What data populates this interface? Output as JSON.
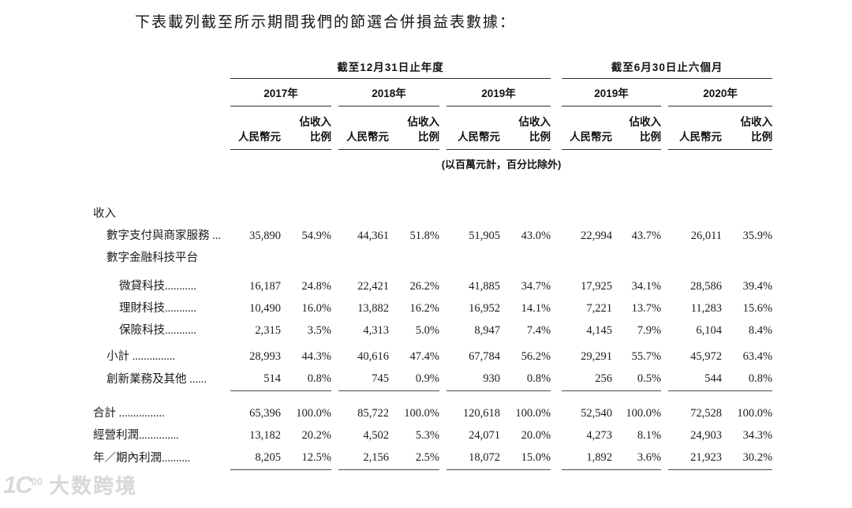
{
  "page": {
    "title": "下表載列截至所示期間我們的節選合併損益表數據："
  },
  "table": {
    "groups": [
      {
        "label": "截至12月31日止年度",
        "years": [
          "2017年",
          "2018年",
          "2019年"
        ]
      },
      {
        "label": "截至6月30日止六個月",
        "years": [
          "2019年",
          "2020年"
        ]
      }
    ],
    "subheaders": {
      "currency": "人民幣元",
      "share_line1": "佔收入",
      "share_line2": "比例"
    },
    "note": "(以百萬元計，百分比除外)",
    "rows": [
      {
        "label": "收入",
        "indent": 0,
        "values": []
      },
      {
        "label": "數字支付與商家服務 ...",
        "indent": 1,
        "values": [
          "35,890",
          "54.9%",
          "44,361",
          "51.8%",
          "51,905",
          "43.0%",
          "22,994",
          "43.7%",
          "26,011",
          "35.9%"
        ]
      },
      {
        "label": "數字金融科技平台",
        "indent": 1,
        "values": []
      },
      {
        "label": "微貸科技...........",
        "indent": 2,
        "gap": "sm",
        "values": [
          "16,187",
          "24.8%",
          "22,421",
          "26.2%",
          "41,885",
          "34.7%",
          "17,925",
          "34.1%",
          "28,586",
          "39.4%"
        ]
      },
      {
        "label": "理財科技...........",
        "indent": 2,
        "values": [
          "10,490",
          "16.0%",
          "13,882",
          "16.2%",
          "16,952",
          "14.1%",
          "7,221",
          "13.7%",
          "11,283",
          "15.6%"
        ]
      },
      {
        "label": "保險科技...........",
        "indent": 2,
        "values": [
          "2,315",
          "3.5%",
          "4,313",
          "5.0%",
          "8,947",
          "7.4%",
          "4,145",
          "7.9%",
          "6,104",
          "8.4%"
        ]
      },
      {
        "label": "小計 ...............",
        "indent": 1,
        "gap": "md",
        "values": [
          "28,993",
          "44.3%",
          "40,616",
          "47.4%",
          "67,784",
          "56.2%",
          "29,291",
          "55.7%",
          "45,972",
          "63.4%"
        ]
      },
      {
        "label": "創新業務及其他 ......",
        "indent": 1,
        "rule_below": true,
        "values": [
          "514",
          "0.8%",
          "745",
          "0.9%",
          "930",
          "0.8%",
          "256",
          "0.5%",
          "544",
          "0.8%"
        ]
      },
      {
        "label": "合計 ................",
        "indent": 0,
        "gap": "lg",
        "values": [
          "65,396",
          "100.0%",
          "85,722",
          "100.0%",
          "120,618",
          "100.0%",
          "52,540",
          "100.0%",
          "72,528",
          "100.0%"
        ]
      },
      {
        "label": "經營利潤..............",
        "indent": 0,
        "values": [
          "13,182",
          "20.2%",
          "4,502",
          "5.3%",
          "24,071",
          "20.0%",
          "4,273",
          "8.1%",
          "24,903",
          "34.3%"
        ]
      },
      {
        "label": "年／期內利潤..........",
        "indent": 0,
        "rule_below": true,
        "values": [
          "8,205",
          "12.5%",
          "2,156",
          "2.5%",
          "18,072",
          "15.0%",
          "1,892",
          "3.6%",
          "21,923",
          "30.2%"
        ]
      }
    ]
  },
  "watermark": {
    "logo": "1C00",
    "text": "大数跨境"
  }
}
